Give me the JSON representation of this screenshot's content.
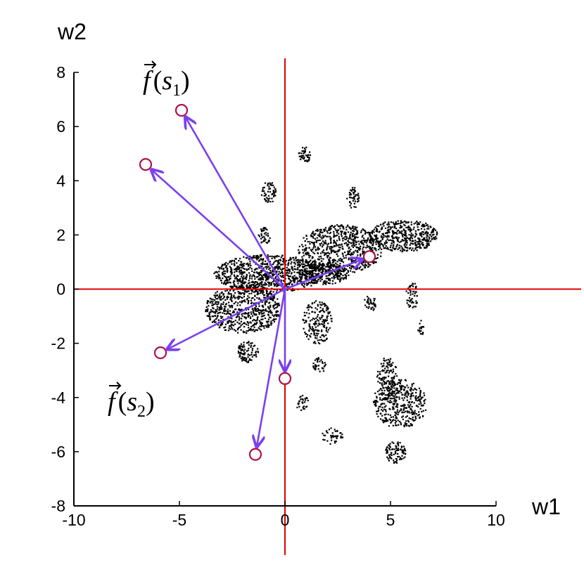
{
  "chart_data": {
    "type": "scatter",
    "xlabel": "w1",
    "ylabel": "w2",
    "xlim": [
      -10,
      10
    ],
    "ylim": [
      -8,
      8
    ],
    "x_ticks": [
      -10,
      -5,
      0,
      5,
      10
    ],
    "y_ticks": [
      -8,
      -6,
      -4,
      -2,
      0,
      2,
      4,
      6,
      8
    ],
    "x_tick_labels": [
      "-10",
      "-5",
      "0",
      "5",
      "10"
    ],
    "y_tick_labels": [
      "-8",
      "-6",
      "-4",
      "-2",
      "0",
      "2",
      "4",
      "6",
      "8"
    ],
    "grid": false,
    "reference_lines": {
      "x": 0,
      "y": 0,
      "color": "#e00000"
    },
    "colors": {
      "points": "#000000",
      "arrows": "#7a3ff2",
      "markers": "#b0104a",
      "reference": "#e00000"
    },
    "highlighted_points": [
      {
        "x": -4.9,
        "y": 6.6
      },
      {
        "x": -6.6,
        "y": 4.6
      },
      {
        "x": 4.0,
        "y": 1.2
      },
      {
        "x": -5.9,
        "y": -2.35
      },
      {
        "x": 0.0,
        "y": -3.3
      },
      {
        "x": -1.4,
        "y": -6.1
      }
    ],
    "arrow_origin": {
      "x": 0.0,
      "y": 0.0
    },
    "annotations": [
      {
        "id": "s1",
        "main": "f",
        "open": "(",
        "var": "s",
        "sub": "1",
        "close": ")"
      },
      {
        "id": "s2",
        "main": "f",
        "open": "(",
        "var": "s",
        "sub": "2",
        "close": ")"
      }
    ],
    "clusters": [
      {
        "cx": -0.8,
        "cy": 0.6,
        "rx": 2.6,
        "ry": 0.7,
        "n": 900
      },
      {
        "cx": -2.0,
        "cy": -0.7,
        "rx": 1.8,
        "ry": 0.9,
        "n": 650
      },
      {
        "cx": 2.6,
        "cy": 1.5,
        "rx": 2.0,
        "ry": 0.9,
        "n": 700
      },
      {
        "cx": 5.6,
        "cy": 2.0,
        "rx": 1.6,
        "ry": 0.6,
        "n": 450
      },
      {
        "cx": 1.8,
        "cy": 0.6,
        "rx": 1.2,
        "ry": 0.4,
        "n": 250
      },
      {
        "cx": 1.5,
        "cy": -1.2,
        "rx": 0.7,
        "ry": 0.8,
        "n": 180
      },
      {
        "cx": 5.4,
        "cy": -4.2,
        "rx": 1.3,
        "ry": 0.9,
        "n": 400
      },
      {
        "cx": 4.8,
        "cy": -3.2,
        "rx": 0.5,
        "ry": 0.7,
        "n": 120
      },
      {
        "cx": -1.8,
        "cy": -2.3,
        "rx": 0.5,
        "ry": 0.4,
        "n": 90
      },
      {
        "cx": -0.8,
        "cy": 3.6,
        "rx": 0.35,
        "ry": 0.4,
        "n": 55
      },
      {
        "cx": -1.0,
        "cy": 2.0,
        "rx": 0.3,
        "ry": 0.3,
        "n": 40
      },
      {
        "cx": 0.9,
        "cy": 5.0,
        "rx": 0.3,
        "ry": 0.3,
        "n": 40
      },
      {
        "cx": 3.2,
        "cy": 3.4,
        "rx": 0.3,
        "ry": 0.4,
        "n": 45
      },
      {
        "cx": 5.2,
        "cy": -6.0,
        "rx": 0.5,
        "ry": 0.4,
        "n": 90
      },
      {
        "cx": 1.6,
        "cy": -2.8,
        "rx": 0.3,
        "ry": 0.3,
        "n": 35
      },
      {
        "cx": 6.0,
        "cy": -0.2,
        "rx": 0.3,
        "ry": 0.5,
        "n": 50
      },
      {
        "cx": 6.4,
        "cy": -1.4,
        "rx": 0.15,
        "ry": 0.3,
        "n": 18
      },
      {
        "cx": 2.2,
        "cy": -5.4,
        "rx": 0.5,
        "ry": 0.3,
        "n": 40
      },
      {
        "cx": 0.8,
        "cy": -4.2,
        "rx": 0.3,
        "ry": 0.3,
        "n": 30
      },
      {
        "cx": 4.0,
        "cy": -0.5,
        "rx": 0.3,
        "ry": 0.3,
        "n": 35
      }
    ]
  }
}
